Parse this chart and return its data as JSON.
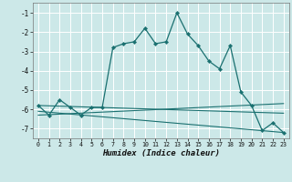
{
  "xlabel": "Humidex (Indice chaleur)",
  "background_color": "#cce8e8",
  "grid_color": "#ffffff",
  "line_color": "#1a7070",
  "xlim": [
    -0.5,
    23.5
  ],
  "ylim": [
    -7.5,
    -0.5
  ],
  "yticks": [
    -7,
    -6,
    -5,
    -4,
    -3,
    -2,
    -1
  ],
  "xticks": [
    0,
    1,
    2,
    3,
    4,
    5,
    6,
    7,
    8,
    9,
    10,
    11,
    12,
    13,
    14,
    15,
    16,
    17,
    18,
    19,
    20,
    21,
    22,
    23
  ],
  "main_curve": [
    [
      0,
      -5.8
    ],
    [
      1,
      -6.3
    ],
    [
      2,
      -5.5
    ],
    [
      3,
      -5.9
    ],
    [
      4,
      -6.3
    ],
    [
      5,
      -5.9
    ],
    [
      6,
      -5.9
    ],
    [
      7,
      -2.8
    ],
    [
      8,
      -2.6
    ],
    [
      9,
      -2.5
    ],
    [
      10,
      -1.8
    ],
    [
      11,
      -2.6
    ],
    [
      12,
      -2.5
    ],
    [
      13,
      -1.0
    ],
    [
      14,
      -2.1
    ],
    [
      15,
      -2.7
    ],
    [
      16,
      -3.5
    ],
    [
      17,
      -3.9
    ],
    [
      18,
      -2.7
    ],
    [
      19,
      -5.1
    ],
    [
      20,
      -5.8
    ],
    [
      21,
      -7.1
    ],
    [
      22,
      -6.7
    ],
    [
      23,
      -7.2
    ]
  ],
  "trend_lines": [
    [
      [
        0,
        -5.8
      ],
      [
        23,
        -6.2
      ]
    ],
    [
      [
        0,
        -6.1
      ],
      [
        23,
        -7.2
      ]
    ],
    [
      [
        0,
        -6.3
      ],
      [
        23,
        -5.7
      ]
    ]
  ]
}
